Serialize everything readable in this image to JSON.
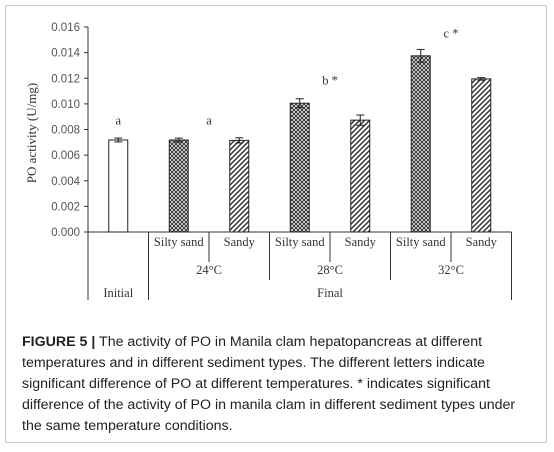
{
  "chart_data": {
    "type": "bar",
    "ylabel": "PO activity (U/mg)",
    "ylim": [
      0,
      0.016
    ],
    "yticks": [
      "0.000",
      "0.002",
      "0.004",
      "0.006",
      "0.008",
      "0.010",
      "0.012",
      "0.014",
      "0.016"
    ],
    "categories": [
      "Initial",
      "Silty sand",
      "Sandy",
      "Silty sand",
      "Sandy",
      "Silty sand",
      "Sandy"
    ],
    "temperature_groups": [
      {
        "label": "24°C",
        "bars": [
          1,
          2
        ]
      },
      {
        "label": "28°C",
        "bars": [
          3,
          4
        ]
      },
      {
        "label": "32°C",
        "bars": [
          5,
          6
        ]
      }
    ],
    "phase_groups": [
      {
        "label": "Initial",
        "bars": [
          0
        ]
      },
      {
        "label": "Final",
        "bars": [
          1,
          2,
          3,
          4,
          5,
          6
        ]
      }
    ],
    "values": [
      0.00718,
      0.00718,
      0.00715,
      0.01005,
      0.00873,
      0.01375,
      0.01195
    ],
    "errors": [
      0.00015,
      0.00015,
      0.0002,
      0.00035,
      0.0004,
      0.0005,
      0.0001
    ],
    "patterns": [
      "white",
      "crosshatch",
      "diagonal",
      "crosshatch",
      "diagonal",
      "crosshatch",
      "diagonal"
    ],
    "annotations": [
      {
        "text": "a",
        "x_between": [
          0
        ],
        "y": 0.0084
      },
      {
        "text": "a",
        "x_between": [
          1,
          2
        ],
        "y": 0.0084
      },
      {
        "text": "b *",
        "x_between": [
          3,
          4
        ],
        "y": 0.0115
      },
      {
        "text": "c *",
        "x_between": [
          5,
          6
        ],
        "y": 0.0152
      }
    ],
    "grid": false,
    "colors": {
      "bar_edge": "#222222",
      "axis": "#333333",
      "text": "#333333"
    }
  },
  "caption": {
    "label": "FIGURE 5 |",
    "text": " The activity of PO in Manila clam hepatopancreas at different temperatures and in different sediment types. The different letters indicate significant difference of PO at different temperatures. * indicates significant difference of the activity of PO in manila clam in different sediment types under the same temperature conditions."
  }
}
